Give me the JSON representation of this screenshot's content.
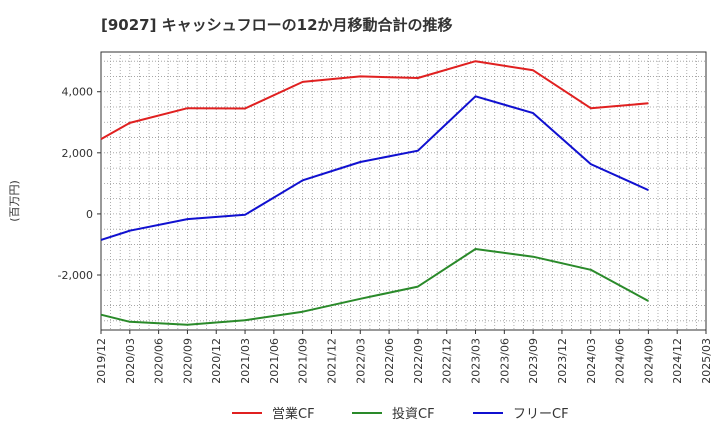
{
  "chart_data": {
    "type": "line",
    "title": "[9027]  キャッシュフローの12か月移動合計の推移",
    "xlabel": "",
    "ylabel": "(百万円)",
    "categories": [
      "2019/12",
      "2020/03",
      "2020/06",
      "2020/09",
      "2020/12",
      "2021/03",
      "2021/06",
      "2021/09",
      "2021/12",
      "2022/03",
      "2022/06",
      "2022/09",
      "2022/12",
      "2023/03",
      "2023/06",
      "2023/09",
      "2023/12",
      "2024/03",
      "2024/06",
      "2024/09",
      "2024/12",
      "2025/03"
    ],
    "ylim": [
      -3800,
      5300
    ],
    "yticks": [
      -2000,
      0,
      2000,
      4000
    ],
    "ytick_labels": [
      "-2,000",
      "0",
      "2,000",
      "4,000"
    ],
    "grid": true,
    "legend_position": "bottom",
    "series": [
      {
        "name": "営業CF",
        "color": "#e02020",
        "points": [
          {
            "x": "2019/12",
            "y": 2450
          },
          {
            "x": "2020/03",
            "y": 2980
          },
          {
            "x": "2020/09",
            "y": 3460
          },
          {
            "x": "2021/03",
            "y": 3450
          },
          {
            "x": "2021/09",
            "y": 4320
          },
          {
            "x": "2022/03",
            "y": 4500
          },
          {
            "x": "2022/09",
            "y": 4450
          },
          {
            "x": "2023/03",
            "y": 5000
          },
          {
            "x": "2023/09",
            "y": 4700
          },
          {
            "x": "2024/03",
            "y": 3460
          },
          {
            "x": "2024/09",
            "y": 3620
          }
        ]
      },
      {
        "name": "投資CF",
        "color": "#2a8a2a",
        "points": [
          {
            "x": "2019/12",
            "y": -3300
          },
          {
            "x": "2020/03",
            "y": -3530
          },
          {
            "x": "2020/09",
            "y": -3630
          },
          {
            "x": "2021/03",
            "y": -3480
          },
          {
            "x": "2021/09",
            "y": -3200
          },
          {
            "x": "2022/03",
            "y": -2780
          },
          {
            "x": "2022/09",
            "y": -2380
          },
          {
            "x": "2023/03",
            "y": -1150
          },
          {
            "x": "2023/09",
            "y": -1400
          },
          {
            "x": "2024/03",
            "y": -1830
          },
          {
            "x": "2024/09",
            "y": -2850
          }
        ]
      },
      {
        "name": "フリーCF",
        "color": "#1010d0",
        "points": [
          {
            "x": "2019/12",
            "y": -850
          },
          {
            "x": "2020/03",
            "y": -550
          },
          {
            "x": "2020/09",
            "y": -170
          },
          {
            "x": "2021/03",
            "y": -30
          },
          {
            "x": "2021/09",
            "y": 1100
          },
          {
            "x": "2022/03",
            "y": 1700
          },
          {
            "x": "2022/09",
            "y": 2070
          },
          {
            "x": "2023/03",
            "y": 3850
          },
          {
            "x": "2023/09",
            "y": 3300
          },
          {
            "x": "2024/03",
            "y": 1630
          },
          {
            "x": "2024/09",
            "y": 780
          }
        ]
      }
    ]
  }
}
